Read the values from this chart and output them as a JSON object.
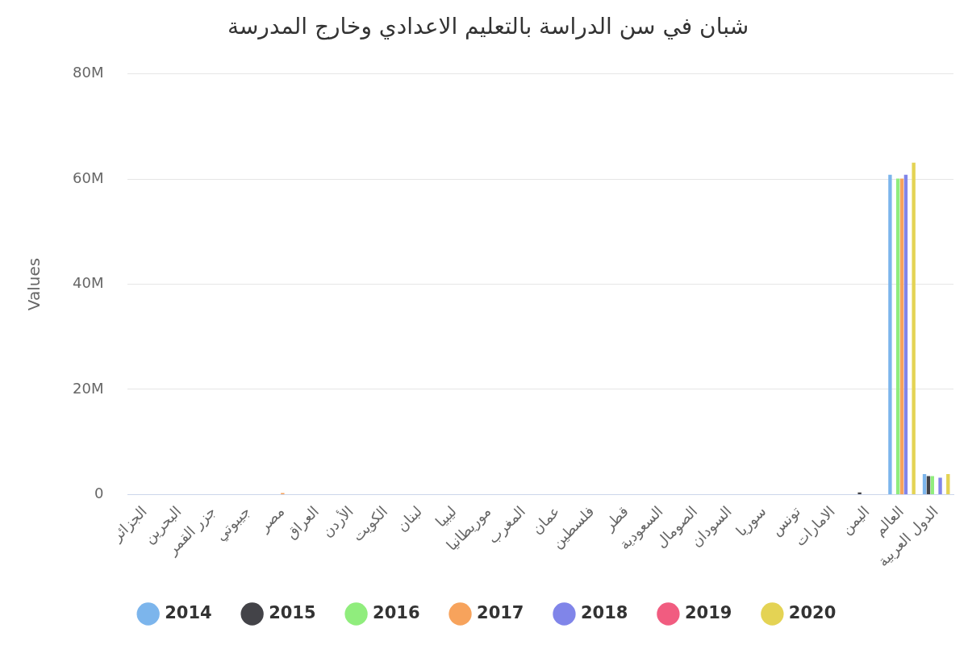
{
  "chart_data": {
    "type": "bar",
    "title": "شبان في سن الدراسة بالتعليم الاعدادي وخارج المدرسة",
    "ylabel": "Values",
    "categories": [
      "الجزائر",
      "البحرين",
      "جزر القمر",
      "جيبوتي",
      "مصر",
      "العراق",
      "الأردن",
      "الكويت",
      "لبنان",
      "ليبيا",
      "موريطانيا",
      "المغرب",
      "عمان",
      "فلسطين",
      "قطر",
      "السعودية",
      "الصومال",
      "السودان",
      "سوريا",
      "تونس",
      "الامارات",
      "اليمن",
      "العالم",
      "الدول العربية"
    ],
    "series": [
      {
        "name": "2014",
        "color": "#7cb5ec",
        "values": [
          null,
          null,
          null,
          null,
          null,
          null,
          null,
          null,
          null,
          null,
          null,
          null,
          null,
          null,
          null,
          null,
          null,
          null,
          null,
          null,
          null,
          null,
          60.8,
          3.9
        ]
      },
      {
        "name": "2015",
        "color": "#434348",
        "values": [
          null,
          null,
          null,
          null,
          null,
          null,
          null,
          null,
          null,
          null,
          null,
          null,
          null,
          null,
          null,
          null,
          null,
          null,
          null,
          null,
          null,
          0.4,
          null,
          3.5
        ]
      },
      {
        "name": "2016",
        "color": "#90ed7d",
        "values": [
          null,
          null,
          null,
          null,
          null,
          null,
          null,
          null,
          null,
          null,
          null,
          null,
          null,
          null,
          null,
          null,
          null,
          null,
          null,
          null,
          null,
          null,
          60.1,
          3.5
        ]
      },
      {
        "name": "2017",
        "color": "#f7a35c",
        "values": [
          null,
          null,
          null,
          null,
          0.3,
          null,
          null,
          null,
          null,
          null,
          null,
          null,
          null,
          null,
          null,
          null,
          null,
          null,
          null,
          null,
          null,
          null,
          60.1,
          null
        ]
      },
      {
        "name": "2018",
        "color": "#8085e9",
        "values": [
          null,
          null,
          null,
          null,
          null,
          null,
          null,
          null,
          null,
          null,
          null,
          null,
          null,
          null,
          null,
          null,
          null,
          null,
          null,
          null,
          null,
          null,
          60.8,
          3.2
        ]
      },
      {
        "name": "2019",
        "color": "#f15c80",
        "values": [
          null,
          null,
          null,
          null,
          null,
          null,
          null,
          null,
          null,
          null,
          null,
          null,
          null,
          null,
          null,
          null,
          null,
          null,
          null,
          null,
          null,
          null,
          null,
          null
        ]
      },
      {
        "name": "2020",
        "color": "#e4d354",
        "values": [
          null,
          null,
          null,
          null,
          null,
          null,
          null,
          null,
          null,
          null,
          null,
          null,
          null,
          null,
          null,
          null,
          null,
          null,
          null,
          null,
          null,
          null,
          63.1,
          3.9
        ]
      }
    ],
    "ylim": [
      0,
      80
    ],
    "yticks": [
      {
        "value": 0,
        "label": "0"
      },
      {
        "value": 20,
        "label": "20M"
      },
      {
        "value": 40,
        "label": "40M"
      },
      {
        "value": 60,
        "label": "60M"
      },
      {
        "value": 80,
        "label": "80M"
      }
    ],
    "grid": "y",
    "legend": "bottom"
  }
}
